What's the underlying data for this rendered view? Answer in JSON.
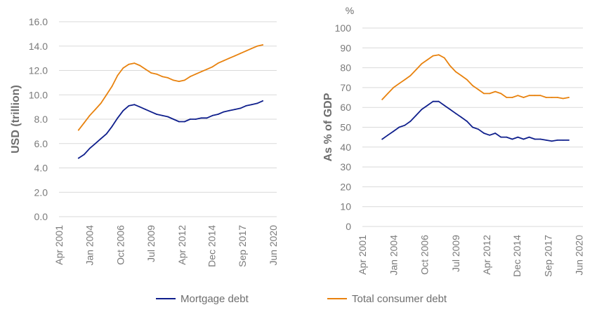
{
  "colors": {
    "mortgage": "#0f1f8c",
    "total": "#e8820e",
    "grid": "#d9d9d9",
    "text": "#7a7a7a"
  },
  "legend": [
    {
      "label": "Mortgage debt",
      "color": "#0f1f8c"
    },
    {
      "label": "Total consumer debt",
      "color": "#e8820e"
    }
  ],
  "chart_data": [
    {
      "type": "line",
      "title": "",
      "xlabel": "",
      "ylabel": "USD (trillion)",
      "unit_label": "",
      "x_ticks": [
        "Apr 2001",
        "Jan 2004",
        "Oct 2006",
        "Jul 2009",
        "Apr 2012",
        "Dec 2014",
        "Sep 2017",
        "Jun 2020"
      ],
      "y_ticks": [
        "0.0",
        "2.0",
        "4.0",
        "6.0",
        "8.0",
        "10.0",
        "12.0",
        "14.0",
        "16.0"
      ],
      "ylim": [
        0,
        16
      ],
      "grid": true,
      "x": [
        2003.0,
        2003.5,
        2004.0,
        2004.5,
        2005.0,
        2005.5,
        2006.0,
        2006.5,
        2007.0,
        2007.5,
        2008.0,
        2008.5,
        2009.0,
        2009.5,
        2010.0,
        2010.5,
        2011.0,
        2011.5,
        2012.0,
        2012.5,
        2013.0,
        2013.5,
        2014.0,
        2014.5,
        2015.0,
        2015.5,
        2016.0,
        2016.5,
        2017.0,
        2017.5,
        2018.0,
        2018.5,
        2019.0,
        2019.5
      ],
      "series": [
        {
          "name": "Mortgage debt",
          "values": [
            4.8,
            5.1,
            5.6,
            6.0,
            6.4,
            6.8,
            7.4,
            8.1,
            8.7,
            9.1,
            9.2,
            9.0,
            8.8,
            8.6,
            8.4,
            8.3,
            8.2,
            8.0,
            7.8,
            7.8,
            8.0,
            8.0,
            8.1,
            8.1,
            8.3,
            8.4,
            8.6,
            8.7,
            8.8,
            8.9,
            9.1,
            9.2,
            9.3,
            9.5
          ]
        },
        {
          "name": "Total consumer debt",
          "values": [
            7.1,
            7.7,
            8.3,
            8.8,
            9.3,
            10.0,
            10.7,
            11.6,
            12.2,
            12.5,
            12.6,
            12.4,
            12.1,
            11.8,
            11.7,
            11.5,
            11.4,
            11.2,
            11.1,
            11.2,
            11.5,
            11.7,
            11.9,
            12.1,
            12.3,
            12.6,
            12.8,
            13.0,
            13.2,
            13.4,
            13.6,
            13.8,
            14.0,
            14.1
          ]
        }
      ]
    },
    {
      "type": "line",
      "title": "",
      "xlabel": "",
      "ylabel": "As % of GDP",
      "unit_label": "%",
      "x_ticks": [
        "Apr 2001",
        "Jan 2004",
        "Oct 2006",
        "Jul 2009",
        "Apr 2012",
        "Dec 2014",
        "Sep 2017",
        "Jun 2020"
      ],
      "y_ticks": [
        "0",
        "10",
        "20",
        "30",
        "40",
        "50",
        "60",
        "70",
        "80",
        "90",
        "100"
      ],
      "ylim": [
        0,
        100
      ],
      "grid": true,
      "x": [
        2003.0,
        2003.5,
        2004.0,
        2004.5,
        2005.0,
        2005.5,
        2006.0,
        2006.5,
        2007.0,
        2007.5,
        2008.0,
        2008.5,
        2009.0,
        2009.5,
        2010.0,
        2010.5,
        2011.0,
        2011.5,
        2012.0,
        2012.5,
        2013.0,
        2013.5,
        2014.0,
        2014.5,
        2015.0,
        2015.5,
        2016.0,
        2016.5,
        2017.0,
        2017.5,
        2018.0,
        2018.5,
        2019.0,
        2019.5
      ],
      "series": [
        {
          "name": "Mortgage debt",
          "values": [
            44,
            46,
            48,
            50,
            51,
            53,
            56,
            59,
            61,
            63,
            63,
            61,
            59,
            57,
            55,
            53,
            50,
            49,
            47,
            46,
            47,
            45,
            45,
            44,
            45,
            44,
            45,
            44,
            44,
            43.5,
            43,
            43.5,
            43.5,
            43.5
          ]
        },
        {
          "name": "Total consumer debt",
          "values": [
            64,
            67,
            70,
            72,
            74,
            76,
            79,
            82,
            84,
            86,
            86.5,
            85,
            81,
            78,
            76,
            74,
            71,
            69,
            67,
            67,
            68,
            67,
            65,
            65,
            66,
            65,
            66,
            66,
            66,
            65,
            65,
            65,
            64.5,
            65
          ]
        }
      ]
    }
  ]
}
